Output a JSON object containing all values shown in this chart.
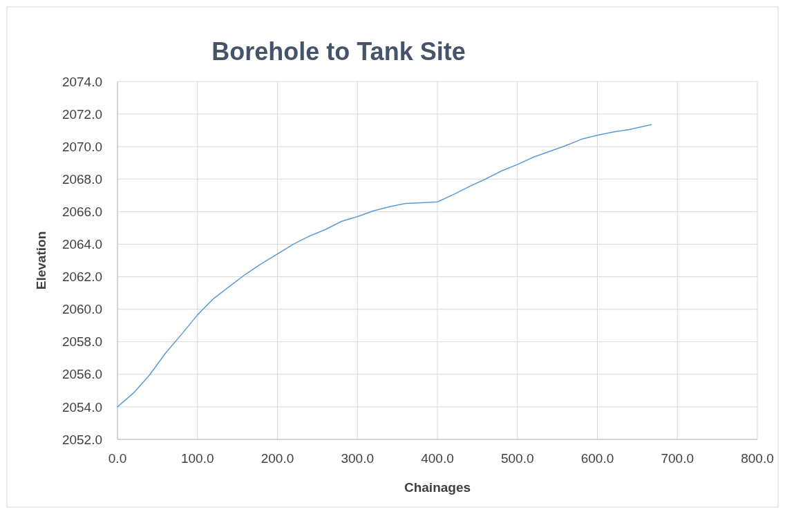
{
  "chart_data": {
    "type": "line",
    "title": "Borehole to Tank Site",
    "xlabel": "Chainages",
    "ylabel": "Elevation",
    "xlim": [
      0,
      800
    ],
    "ylim": [
      2052,
      2074
    ],
    "xticks": [
      {
        "value": 0,
        "label": "0.0"
      },
      {
        "value": 100,
        "label": "100.0"
      },
      {
        "value": 200,
        "label": "200.0"
      },
      {
        "value": 300,
        "label": "300.0"
      },
      {
        "value": 400,
        "label": "400.0"
      },
      {
        "value": 500,
        "label": "500.0"
      },
      {
        "value": 600,
        "label": "600.0"
      },
      {
        "value": 700,
        "label": "700.0"
      },
      {
        "value": 800,
        "label": "800.0"
      }
    ],
    "yticks": [
      {
        "value": 2052,
        "label": "2052.0"
      },
      {
        "value": 2054,
        "label": "2054.0"
      },
      {
        "value": 2056,
        "label": "2056.0"
      },
      {
        "value": 2058,
        "label": "2058.0"
      },
      {
        "value": 2060,
        "label": "2060.0"
      },
      {
        "value": 2062,
        "label": "2062.0"
      },
      {
        "value": 2064,
        "label": "2064.0"
      },
      {
        "value": 2066,
        "label": "2066.0"
      },
      {
        "value": 2068,
        "label": "2068.0"
      },
      {
        "value": 2070,
        "label": "2070.0"
      },
      {
        "value": 2072,
        "label": "2072.0"
      },
      {
        "value": 2074,
        "label": "2074.0"
      }
    ],
    "grid": true,
    "marker": "none",
    "line_style": "solid",
    "x": [
      0,
      20,
      40,
      60,
      80,
      100,
      120,
      140,
      160,
      180,
      200,
      220,
      240,
      260,
      280,
      300,
      320,
      340,
      360,
      380,
      400,
      420,
      440,
      460,
      480,
      500,
      520,
      540,
      560,
      580,
      600,
      620,
      640,
      667
    ],
    "series": [
      {
        "color": "#5b9bd5",
        "values": [
          2054.0,
          2054.85,
          2055.95,
          2057.3,
          2058.45,
          2059.65,
          2060.65,
          2061.4,
          2062.15,
          2062.8,
          2063.4,
          2064.0,
          2064.5,
          2064.9,
          2065.4,
          2065.7,
          2066.05,
          2066.3,
          2066.5,
          2066.55,
          2066.6,
          2067.05,
          2067.55,
          2068.0,
          2068.5,
          2068.9,
          2069.35,
          2069.7,
          2070.05,
          2070.45,
          2070.7,
          2070.9,
          2071.05,
          2071.35
        ]
      }
    ]
  }
}
